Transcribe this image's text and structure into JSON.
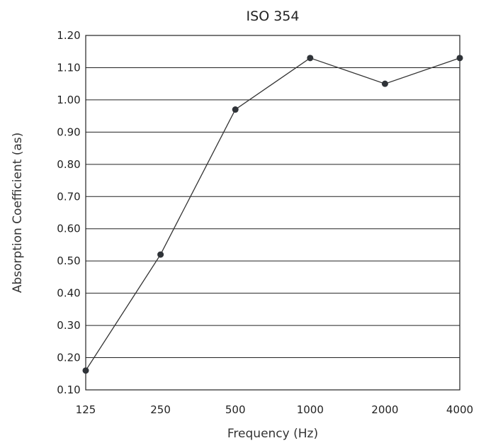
{
  "chart_data": {
    "type": "line",
    "title": "ISO 354",
    "xlabel": "Frequency (Hz)",
    "ylabel": "Absorption Coefficient (as)",
    "categories": [
      "125",
      "250",
      "500",
      "1000",
      "2000",
      "4000"
    ],
    "series": [
      {
        "values": [
          0.16,
          0.52,
          0.97,
          1.13,
          1.05,
          1.13
        ]
      }
    ],
    "yticks": [
      "0.10",
      "0.20",
      "0.30",
      "0.40",
      "0.50",
      "0.60",
      "0.70",
      "0.80",
      "0.90",
      "1.00",
      "1.10",
      "1.20"
    ],
    "ylim": [
      0.1,
      1.2
    ],
    "grid": true,
    "legend": "none"
  }
}
